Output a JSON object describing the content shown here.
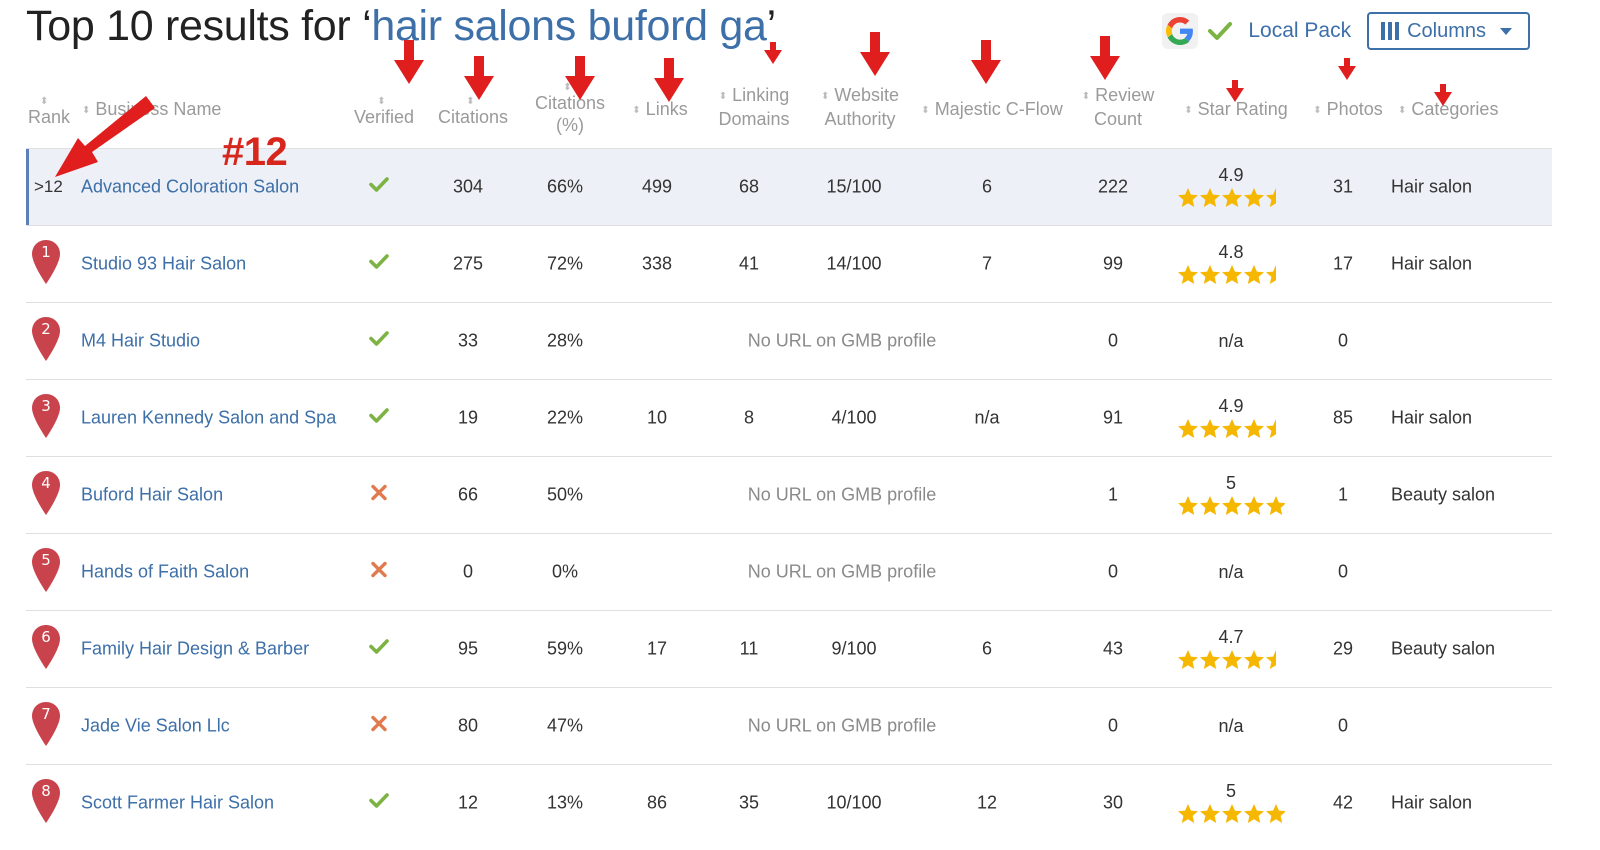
{
  "title": {
    "prefix": "Top 10 results for ‘",
    "query": "hair salons buford ga",
    "suffix": "’"
  },
  "toolbar": {
    "local_pack_label": "Local Pack",
    "columns_label": "Columns"
  },
  "columns": {
    "rank": "Rank",
    "business_name": "Business Name",
    "verified": "Verified",
    "citations": "Citations",
    "citations_pct_1": "Citations",
    "citations_pct_2": "(%)",
    "links": "Links",
    "linking_domains_1": "Linking",
    "linking_domains_2": "Domains",
    "website_authority_1": "Website",
    "website_authority_2": "Authority",
    "majestic": "Majestic C-Flow",
    "review_count_1": "Review",
    "review_count_2": "Count",
    "star_rating": "Star Rating",
    "photos": "Photos",
    "categories": "Categories"
  },
  "annotation": {
    "rank_callout": "#12"
  },
  "colors": {
    "link": "#3d6fa8",
    "pin": "#c9434c",
    "check": "#7cb342",
    "cross": "#e07a4f",
    "star": "#f5b700",
    "arrow": "#e01e1e"
  },
  "rows": [
    {
      "rank": ">12",
      "name": "Advanced Coloration Salon",
      "verified": true,
      "citations": "304",
      "citations_pct": "66%",
      "links": "499",
      "linking_domains": "68",
      "website_authority": "15/100",
      "majestic": "6",
      "review_count": "222",
      "rating": "4.9",
      "stars": 4.5,
      "photos": "31",
      "category": "Hair salon"
    },
    {
      "rank": "1",
      "name": "Studio 93 Hair Salon",
      "verified": true,
      "citations": "275",
      "citations_pct": "72%",
      "links": "338",
      "linking_domains": "41",
      "website_authority": "14/100",
      "majestic": "7",
      "review_count": "99",
      "rating": "4.8",
      "stars": 4.5,
      "photos": "17",
      "category": "Hair salon"
    },
    {
      "rank": "2",
      "name": "M4 Hair Studio",
      "verified": true,
      "citations": "33",
      "citations_pct": "28%",
      "no_url": "No URL on GMB profile",
      "review_count": "0",
      "rating": "n/a",
      "photos": "0",
      "category": ""
    },
    {
      "rank": "3",
      "name": "Lauren Kennedy Salon and Spa",
      "verified": true,
      "citations": "19",
      "citations_pct": "22%",
      "links": "10",
      "linking_domains": "8",
      "website_authority": "4/100",
      "majestic": "n/a",
      "review_count": "91",
      "rating": "4.9",
      "stars": 4.5,
      "photos": "85",
      "category": "Hair salon"
    },
    {
      "rank": "4",
      "name": "Buford Hair Salon",
      "verified": false,
      "citations": "66",
      "citations_pct": "50%",
      "no_url": "No URL on GMB profile",
      "review_count": "1",
      "rating": "5",
      "stars": 5,
      "photos": "1",
      "category": "Beauty salon"
    },
    {
      "rank": "5",
      "name": "Hands of Faith Salon",
      "verified": false,
      "citations": "0",
      "citations_pct": "0%",
      "no_url": "No URL on GMB profile",
      "review_count": "0",
      "rating": "n/a",
      "photos": "0",
      "category": ""
    },
    {
      "rank": "6",
      "name": "Family Hair Design & Barber",
      "verified": true,
      "citations": "95",
      "citations_pct": "59%",
      "links": "17",
      "linking_domains": "11",
      "website_authority": "9/100",
      "majestic": "6",
      "review_count": "43",
      "rating": "4.7",
      "stars": 4.5,
      "photos": "29",
      "category": "Beauty salon"
    },
    {
      "rank": "7",
      "name": "Jade Vie Salon Llc",
      "verified": false,
      "citations": "80",
      "citations_pct": "47%",
      "no_url": "No URL on GMB profile",
      "review_count": "0",
      "rating": "n/a",
      "photos": "0",
      "category": ""
    },
    {
      "rank": "8",
      "name": "Scott Farmer Hair Salon",
      "verified": true,
      "citations": "12",
      "citations_pct": "13%",
      "links": "86",
      "linking_domains": "35",
      "website_authority": "10/100",
      "majestic": "12",
      "review_count": "30",
      "rating": "5",
      "stars": 5,
      "photos": "42",
      "category": "Hair salon"
    }
  ]
}
